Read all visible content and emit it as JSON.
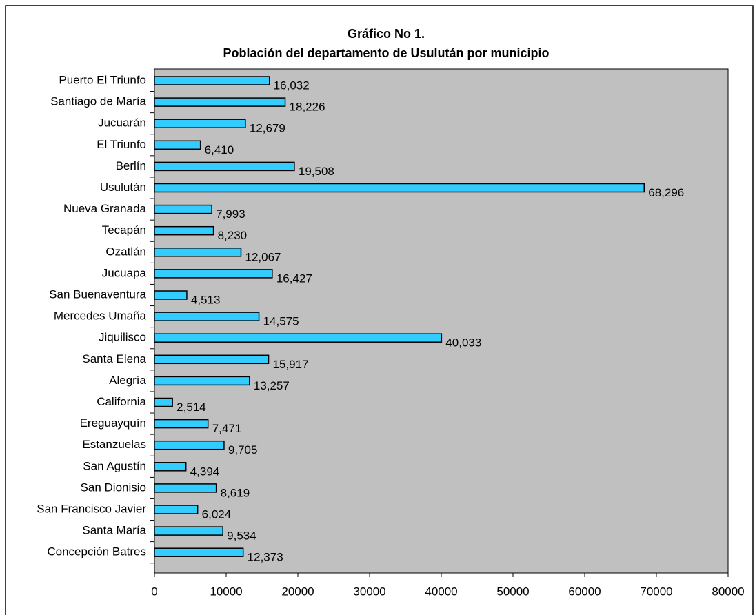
{
  "chart_data": {
    "type": "barh",
    "title": "Gráfico No 1.",
    "subtitle": "Población del departamento de Usulután por municipio",
    "categories": [
      "Puerto El Triunfo",
      "Santiago de María",
      "Jucuarán",
      "El Triunfo",
      "Berlín",
      "Usulután",
      "Nueva Granada",
      "Tecapán",
      "Ozatlán",
      "Jucuapa",
      "San Buenaventura",
      "Mercedes Umaña",
      "Jiquilisco",
      "Santa Elena",
      "Alegría",
      "California",
      "Ereguayquín",
      "Estanzuelas",
      "San Agustín",
      "San Dionisio",
      "San Francisco Javier",
      "Santa María",
      "Concepción Batres"
    ],
    "values": [
      16032,
      18226,
      12679,
      6410,
      19508,
      68296,
      7993,
      8230,
      12067,
      16427,
      4513,
      14575,
      40033,
      15917,
      13257,
      2514,
      7471,
      9705,
      4394,
      8619,
      6024,
      9534,
      12373
    ],
    "value_labels": [
      "16,032",
      "18,226",
      "12,679",
      "6,410",
      "19,508",
      "68,296",
      "7,993",
      "8,230",
      "12,067",
      "16,427",
      "4,513",
      "14,575",
      "40,033",
      "15,917",
      "13,257",
      "2,514",
      "7,471",
      "9,705",
      "4,394",
      "8,619",
      "6,024",
      "9,534",
      "12,373"
    ],
    "color": "#33ccff",
    "plot_background": "#c0c0c0",
    "xlim": [
      0,
      80000
    ],
    "xticks": [
      0,
      10000,
      20000,
      30000,
      40000,
      50000,
      60000,
      70000,
      80000
    ]
  }
}
